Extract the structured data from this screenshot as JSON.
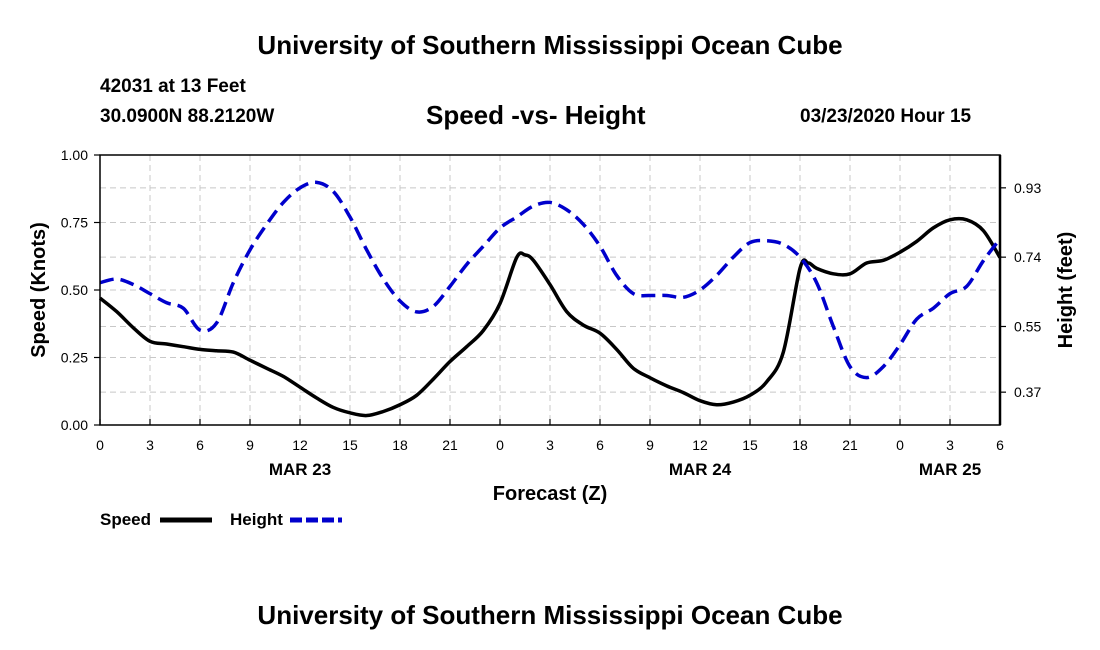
{
  "header": {
    "title": "University of Southern Mississippi Ocean Cube",
    "station": "42031 at 13 Feet",
    "coords": "30.0900N 88.2120W",
    "subtitle": "Speed -vs- Height",
    "datetime": "03/23/2020 Hour 15"
  },
  "footer": {
    "title": "University of Southern Mississippi Ocean Cube"
  },
  "chart_data": {
    "type": "line",
    "xlabel": "Forecast (Z)",
    "ylabel": "Speed (Knots)",
    "y2label": "Height (feet)",
    "x_range": [
      0,
      54
    ],
    "ylim": [
      0,
      1.0
    ],
    "y2lim": [
      0.28,
      1.02
    ],
    "x_ticks": [
      0,
      3,
      6,
      9,
      12,
      15,
      18,
      21,
      24,
      27,
      30,
      33,
      36,
      39,
      42,
      45,
      48,
      51,
      54
    ],
    "x_tick_labels": [
      "0",
      "3",
      "6",
      "9",
      "12",
      "15",
      "18",
      "21",
      "0",
      "3",
      "6",
      "9",
      "12",
      "15",
      "18",
      "21",
      "0",
      "3",
      "6"
    ],
    "y_ticks": [
      0,
      0.25,
      0.5,
      0.75,
      1.0
    ],
    "y_tick_labels": [
      "0.00",
      "0.25",
      "0.50",
      "0.75",
      "1.00"
    ],
    "y2_ticks": [
      0.37,
      0.55,
      0.74,
      0.93
    ],
    "y2_tick_labels": [
      "0.37",
      "0.55",
      "0.74",
      "0.93"
    ],
    "day_labels": [
      {
        "x": 12,
        "label": "MAR 23"
      },
      {
        "x": 36,
        "label": "MAR 24"
      },
      {
        "x": 51,
        "label": "MAR 25"
      }
    ],
    "grid": true,
    "series": [
      {
        "name": "Speed",
        "axis": "left",
        "color": "#000000",
        "style": "solid",
        "x": [
          0,
          1,
          2,
          3,
          4,
          5,
          6,
          7,
          8,
          9,
          10,
          11,
          12,
          13,
          14,
          15,
          16,
          17,
          18,
          19,
          20,
          21,
          22,
          23,
          24,
          25,
          25.5,
          26,
          27,
          28,
          29,
          30,
          31,
          32,
          33,
          34,
          35,
          36,
          37,
          38,
          39,
          40,
          41,
          42,
          42.5,
          43,
          44,
          45,
          46,
          47,
          48,
          49,
          50,
          51,
          52,
          53,
          54
        ],
        "values": [
          0.47,
          0.42,
          0.36,
          0.31,
          0.3,
          0.29,
          0.28,
          0.275,
          0.27,
          0.24,
          0.21,
          0.18,
          0.14,
          0.1,
          0.065,
          0.045,
          0.035,
          0.05,
          0.075,
          0.11,
          0.17,
          0.235,
          0.29,
          0.35,
          0.45,
          0.62,
          0.63,
          0.61,
          0.52,
          0.42,
          0.37,
          0.34,
          0.28,
          0.21,
          0.175,
          0.145,
          0.12,
          0.09,
          0.075,
          0.085,
          0.11,
          0.16,
          0.27,
          0.58,
          0.6,
          0.58,
          0.56,
          0.56,
          0.6,
          0.61,
          0.64,
          0.68,
          0.73,
          0.76,
          0.76,
          0.72,
          0.62
        ]
      },
      {
        "name": "Height",
        "axis": "right",
        "color": "#0000cc",
        "style": "dashed",
        "x": [
          0,
          1,
          2,
          3,
          4,
          5,
          6,
          7,
          8,
          9,
          10,
          11,
          12,
          13,
          14,
          15,
          16,
          17,
          18,
          19,
          20,
          21,
          22,
          23,
          24,
          25,
          26,
          27,
          28,
          29,
          30,
          31,
          32,
          33,
          34,
          35,
          36,
          37,
          38,
          39,
          40,
          41,
          42,
          43,
          44,
          45,
          46,
          47,
          48,
          49,
          50,
          51,
          52,
          53,
          54
        ],
        "values": [
          0.67,
          0.68,
          0.665,
          0.64,
          0.615,
          0.6,
          0.54,
          0.56,
          0.67,
          0.76,
          0.83,
          0.89,
          0.93,
          0.945,
          0.92,
          0.85,
          0.76,
          0.68,
          0.62,
          0.59,
          0.605,
          0.66,
          0.72,
          0.77,
          0.82,
          0.85,
          0.88,
          0.89,
          0.87,
          0.83,
          0.77,
          0.69,
          0.64,
          0.635,
          0.635,
          0.63,
          0.65,
          0.69,
          0.74,
          0.78,
          0.785,
          0.775,
          0.74,
          0.67,
          0.55,
          0.44,
          0.41,
          0.44,
          0.5,
          0.57,
          0.6,
          0.64,
          0.66,
          0.73,
          0.79
        ]
      }
    ]
  },
  "legend": {
    "items": [
      {
        "label": "Speed",
        "color": "#000000",
        "style": "solid"
      },
      {
        "label": "Height",
        "color": "#0000cc",
        "style": "dashed"
      }
    ]
  }
}
